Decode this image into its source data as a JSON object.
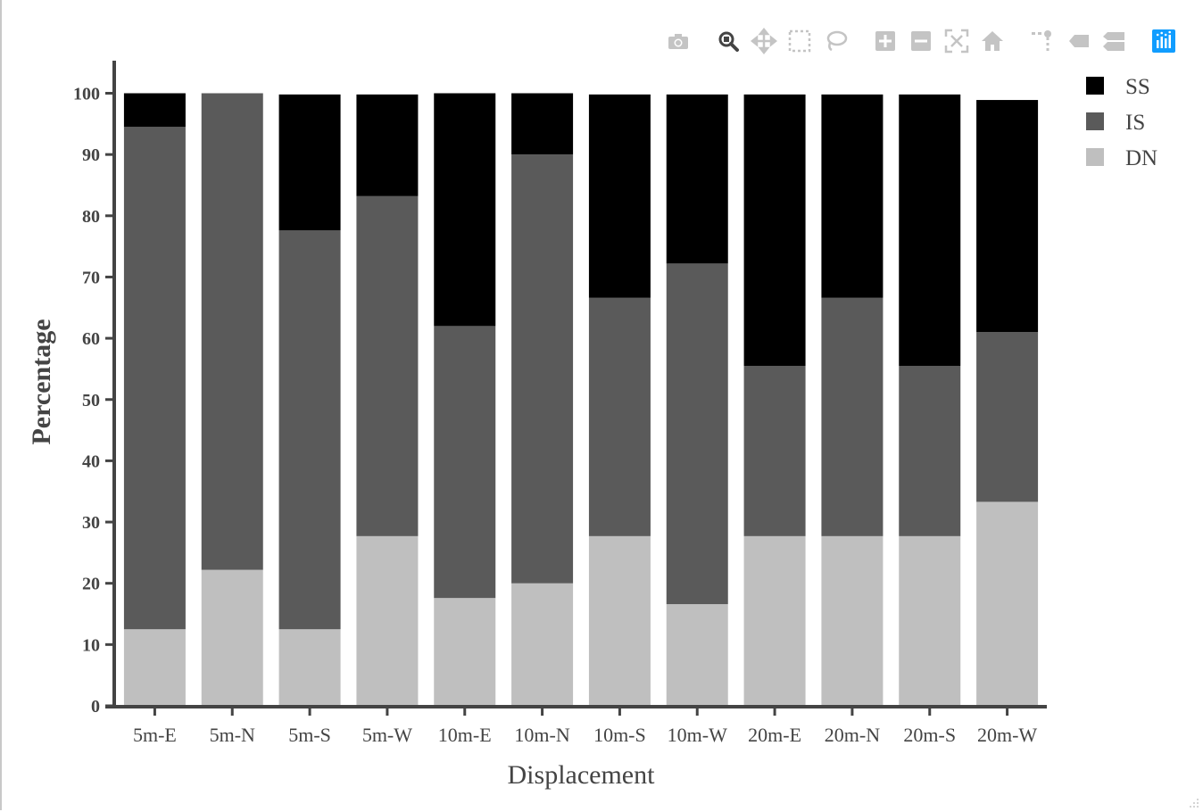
{
  "modebar": {
    "buttons": [
      {
        "name": "camera-icon"
      },
      {
        "name": "zoom-icon"
      },
      {
        "name": "pan-icon"
      },
      {
        "name": "box-select-icon"
      },
      {
        "name": "lasso-select-icon"
      },
      {
        "name": "zoom-in-icon"
      },
      {
        "name": "zoom-out-icon"
      },
      {
        "name": "autoscale-icon"
      },
      {
        "name": "reset-axes-home-icon"
      },
      {
        "name": "toggle-spike-lines-icon"
      },
      {
        "name": "hover-closest-icon"
      },
      {
        "name": "hover-compare-icon"
      },
      {
        "name": "plotly-logo-icon"
      }
    ],
    "icon_color": "#c4c4c4",
    "active_color": "#444444",
    "logo_color": "#119dff"
  },
  "chart_data": {
    "type": "bar",
    "barmode": "stack",
    "title": "",
    "xlabel": "Displacement",
    "ylabel": "Percentage",
    "ylim": [
      0,
      105
    ],
    "yticks": [
      "0",
      "10",
      "20",
      "30",
      "40",
      "50",
      "60",
      "70",
      "80",
      "90",
      "100"
    ],
    "grid": false,
    "legend_position": "top-right",
    "categories": [
      "5m-E",
      "5m-N",
      "5m-S",
      "5m-W",
      "10m-E",
      "10m-N",
      "10m-S",
      "10m-W",
      "20m-E",
      "20m-N",
      "20m-S",
      "20m-W"
    ],
    "series": [
      {
        "name": "DN",
        "color": "#bfbfbf",
        "values": [
          12.5,
          22.2,
          12.5,
          27.7,
          17.6,
          20.0,
          27.7,
          16.6,
          27.7,
          27.7,
          27.7,
          33.3
        ]
      },
      {
        "name": "IS",
        "color": "#5a5a5a",
        "values": [
          82.0,
          77.8,
          65.1,
          55.5,
          44.4,
          70.0,
          38.9,
          55.6,
          27.8,
          38.9,
          27.8,
          27.7
        ]
      },
      {
        "name": "SS",
        "color": "#000000",
        "values": [
          5.5,
          0.0,
          22.2,
          16.6,
          38.0,
          10.0,
          33.2,
          27.6,
          44.3,
          33.2,
          44.3,
          37.9
        ]
      }
    ],
    "legend_order": [
      "SS",
      "IS",
      "DN"
    ]
  }
}
